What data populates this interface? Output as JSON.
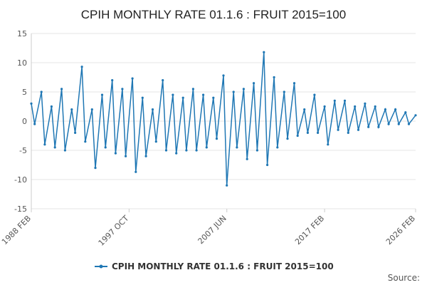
{
  "chart_data": {
    "type": "line",
    "title": "CPIH MONTHLY RATE 01.1.6 : FRUIT 2015=100",
    "xlabel": "",
    "ylabel": "",
    "ylim": [
      -15,
      15
    ],
    "yticks": [
      15,
      10,
      5,
      0,
      -5,
      -10,
      -15
    ],
    "xlim": [
      "1988 FEB",
      "2026 FEB"
    ],
    "xticks": [
      "1988 FEB",
      "1997 OCT",
      "2007 JUN",
      "2017 FEB",
      "2026 FEB"
    ],
    "grid": "horizontal",
    "legend_position": "bottom",
    "series_color": "#1f77b4",
    "series": [
      {
        "name": "CPIH MONTHLY RATE 01.1.6 : FRUIT 2015=100",
        "x": [
          "1988 FEB",
          "1988 JUN",
          "1989 FEB",
          "1989 JUN",
          "1990 FEB",
          "1990 JUN",
          "1991 FEB",
          "1991 JUN",
          "1992 FEB",
          "1992 JUN",
          "1993 FEB",
          "1993 JUN",
          "1994 FEB",
          "1994 JUN",
          "1995 FEB",
          "1995 JUN",
          "1996 FEB",
          "1996 JUN",
          "1997 FEB",
          "1997 JUN",
          "1998 FEB",
          "1998 JUN",
          "1999 FEB",
          "1999 JUN",
          "2000 FEB",
          "2000 JUN",
          "2001 FEB",
          "2001 JUN",
          "2002 FEB",
          "2002 JUN",
          "2003 FEB",
          "2003 JUN",
          "2004 FEB",
          "2004 JUN",
          "2005 FEB",
          "2005 JUN",
          "2006 FEB",
          "2006 JUN",
          "2007 FEB",
          "2007 JUN",
          "2008 FEB",
          "2008 JUN",
          "2009 FEB",
          "2009 JUN",
          "2010 FEB",
          "2010 JUN",
          "2011 FEB",
          "2011 JUN",
          "2012 FEB",
          "2012 JUN",
          "2013 FEB",
          "2013 JUN",
          "2014 FEB",
          "2014 JUN",
          "2015 FEB",
          "2015 JUN",
          "2016 FEB",
          "2016 JUN",
          "2017 FEB",
          "2017 JUN",
          "2018 FEB",
          "2018 JUN",
          "2019 FEB",
          "2019 JUN",
          "2020 FEB",
          "2020 JUN",
          "2021 FEB",
          "2021 JUN",
          "2022 FEB",
          "2022 JUN",
          "2023 FEB",
          "2023 JUN",
          "2024 FEB",
          "2024 JUN",
          "2025 FEB",
          "2025 JUN",
          "2026 FEB"
        ],
        "values": [
          3.0,
          -0.5,
          5.0,
          -4.0,
          2.5,
          -4.5,
          5.5,
          -5.0,
          2.0,
          -2.0,
          9.3,
          -3.5,
          2.0,
          -8.0,
          4.5,
          -4.5,
          7.0,
          -5.5,
          5.5,
          -6.0,
          7.3,
          -8.7,
          4.0,
          -6.0,
          2.0,
          -3.5,
          7.0,
          -5.0,
          4.5,
          -5.5,
          4.0,
          -5.0,
          5.5,
          -5.0,
          4.5,
          -4.5,
          4.0,
          -3.0,
          7.8,
          -11.0,
          5.0,
          -4.5,
          5.5,
          -6.5,
          6.5,
          -5.0,
          11.8,
          -7.5,
          7.5,
          -4.5,
          5.0,
          -3.0,
          6.5,
          -2.5,
          2.0,
          -2.0,
          4.5,
          -2.0,
          2.5,
          -4.0,
          3.5,
          -1.5,
          3.5,
          -2.0,
          2.5,
          -1.5,
          3.0,
          -1.0,
          2.5,
          -1.0,
          2.0,
          -0.5,
          2.0,
          -0.5,
          1.5,
          -0.5,
          1.0
        ]
      }
    ]
  },
  "legend": {
    "label": "CPIH MONTHLY RATE 01.1.6 : FRUIT 2015=100"
  },
  "footer": {
    "source_label": "Source:"
  }
}
